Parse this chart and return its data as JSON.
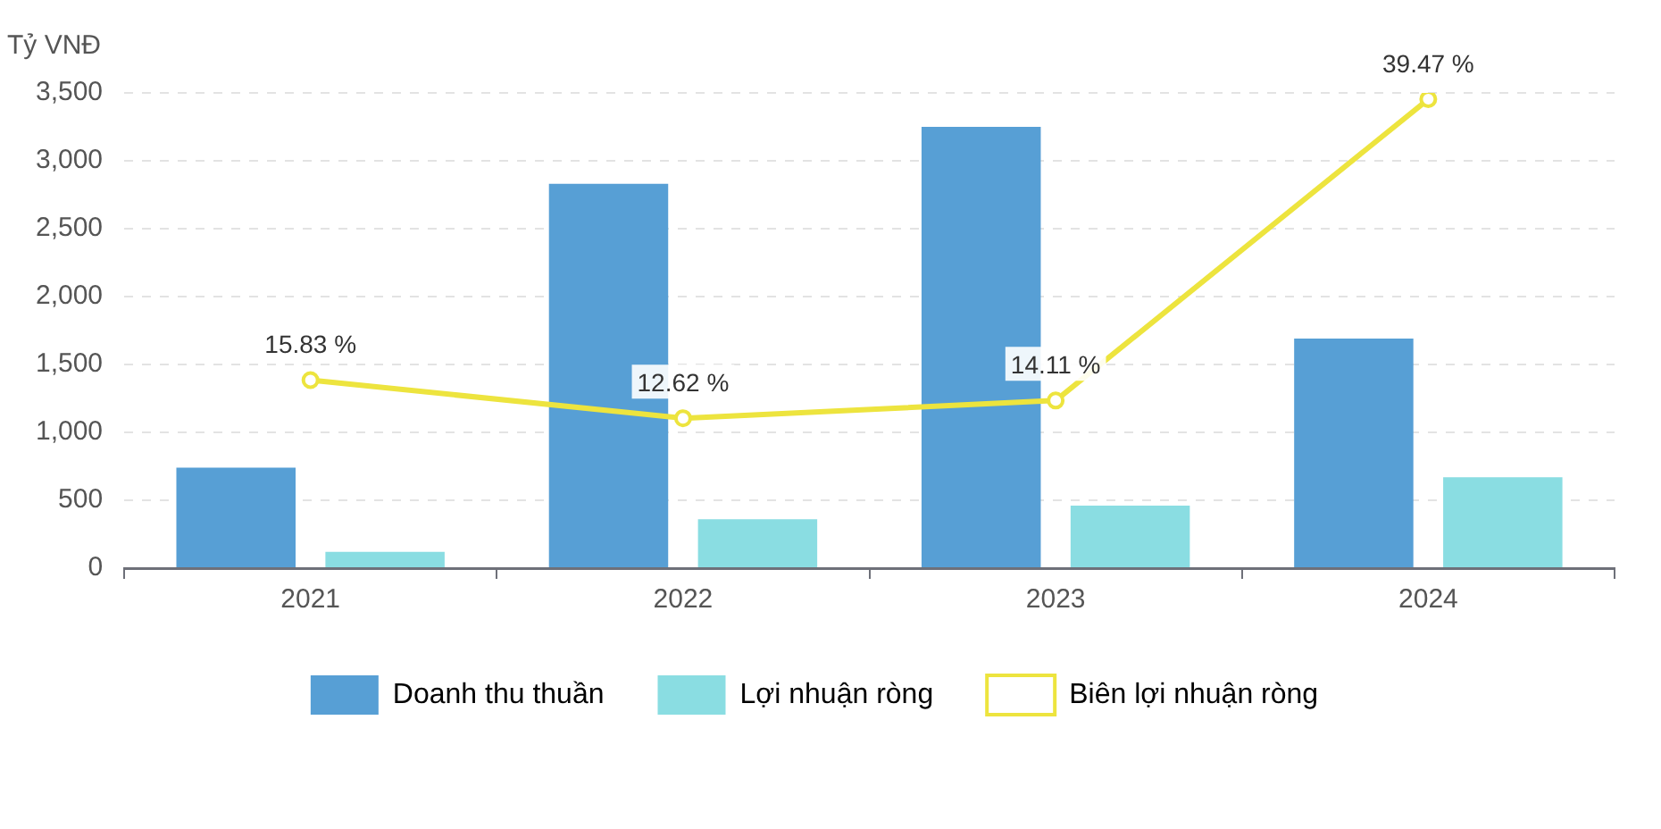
{
  "chart_data": {
    "type": "bar",
    "ylabel": "Tỷ VNĐ",
    "categories": [
      "2021",
      "2022",
      "2023",
      "2024"
    ],
    "series": [
      {
        "name": "Doanh thu thuần",
        "color": "#579fd5",
        "values": [
          740,
          2830,
          3250,
          1690
        ]
      },
      {
        "name": "Lợi nhuận ròng",
        "color": "#8adde2",
        "values": [
          120,
          360,
          460,
          670
        ]
      },
      {
        "name": "Biên lợi nhuận ròng",
        "type": "line",
        "axis": "y2",
        "color": "#ede43e",
        "marker": "circle",
        "values": [
          15.83,
          12.62,
          14.11,
          39.47
        ],
        "value_labels": [
          "15.83 %",
          "12.62 %",
          "14.11 %",
          "39.47 %"
        ]
      }
    ],
    "ylim": [
      0,
      3500
    ],
    "yticks": [
      0,
      500,
      {
        "value": 1000,
        "label": "1,000"
      },
      {
        "value": 1500,
        "label": "1,500"
      },
      {
        "value": 2000,
        "label": "2,000"
      },
      {
        "value": 2500,
        "label": "2,500"
      },
      {
        "value": 3000,
        "label": "3,000"
      },
      {
        "value": 3500,
        "label": "3,500"
      }
    ],
    "y2lim": [
      0,
      40
    ],
    "grid": "y",
    "legend": "bottom"
  }
}
